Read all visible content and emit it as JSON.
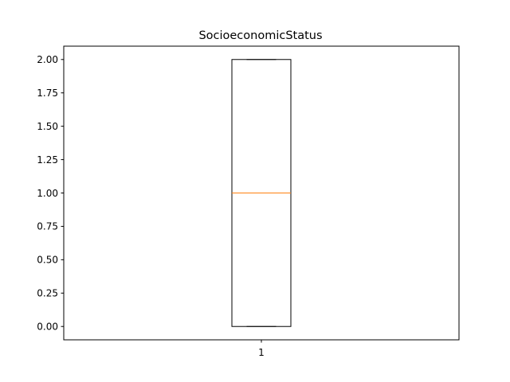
{
  "chart_data": {
    "type": "box",
    "title": "SocioeconomicStatus",
    "xlabel": "",
    "ylabel": "",
    "categories": [
      "1"
    ],
    "boxes": [
      {
        "category": "1",
        "whisker_low": 0.0,
        "q1": 0.0,
        "median": 1.0,
        "q3": 2.0,
        "whisker_high": 2.0
      }
    ],
    "ylim": [
      -0.1,
      2.1
    ],
    "yticks": [
      0.0,
      0.25,
      0.5,
      0.75,
      1.0,
      1.25,
      1.5,
      1.75,
      2.0
    ],
    "ytick_labels": [
      "0.00",
      "0.25",
      "0.50",
      "0.75",
      "1.00",
      "1.25",
      "1.50",
      "1.75",
      "2.00"
    ],
    "grid": false,
    "colors": {
      "box": "#000000",
      "median": "#ff7f0e",
      "axes": "#000000"
    }
  }
}
